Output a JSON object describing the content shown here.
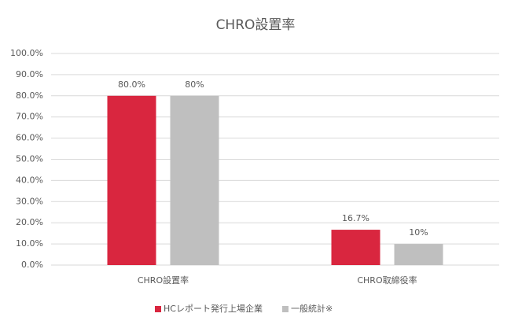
{
  "chart_data": {
    "type": "bar",
    "title": "CHRO設置率",
    "categories": [
      "CHRO設置率",
      "CHRO取締役率"
    ],
    "series": [
      {
        "name": "HCレポート発行上場企業",
        "color": "#d9263f",
        "values": [
          80,
          16.7
        ],
        "value_labels": [
          "80.0%",
          "16.7%"
        ]
      },
      {
        "name": "一般統計※",
        "color": "#bfbfbf",
        "values": [
          80,
          10
        ],
        "value_labels": [
          "80%",
          "10%"
        ]
      }
    ],
    "ylim": [
      0,
      100
    ],
    "yticks": [
      {
        "value": 0,
        "label": "0.0%"
      },
      {
        "value": 10,
        "label": "10.0%"
      },
      {
        "value": 20,
        "label": "20.0%"
      },
      {
        "value": 30,
        "label": "30.0%"
      },
      {
        "value": 40,
        "label": "40.0%"
      },
      {
        "value": 50,
        "label": "50.0%"
      },
      {
        "value": 60,
        "label": "60.0%"
      },
      {
        "value": 70,
        "label": "70.0%"
      },
      {
        "value": 80,
        "label": "80.0%"
      },
      {
        "value": 90,
        "label": "90.0%"
      },
      {
        "value": 100,
        "label": "100.0%"
      }
    ],
    "grid": true,
    "legend": "bottom"
  }
}
